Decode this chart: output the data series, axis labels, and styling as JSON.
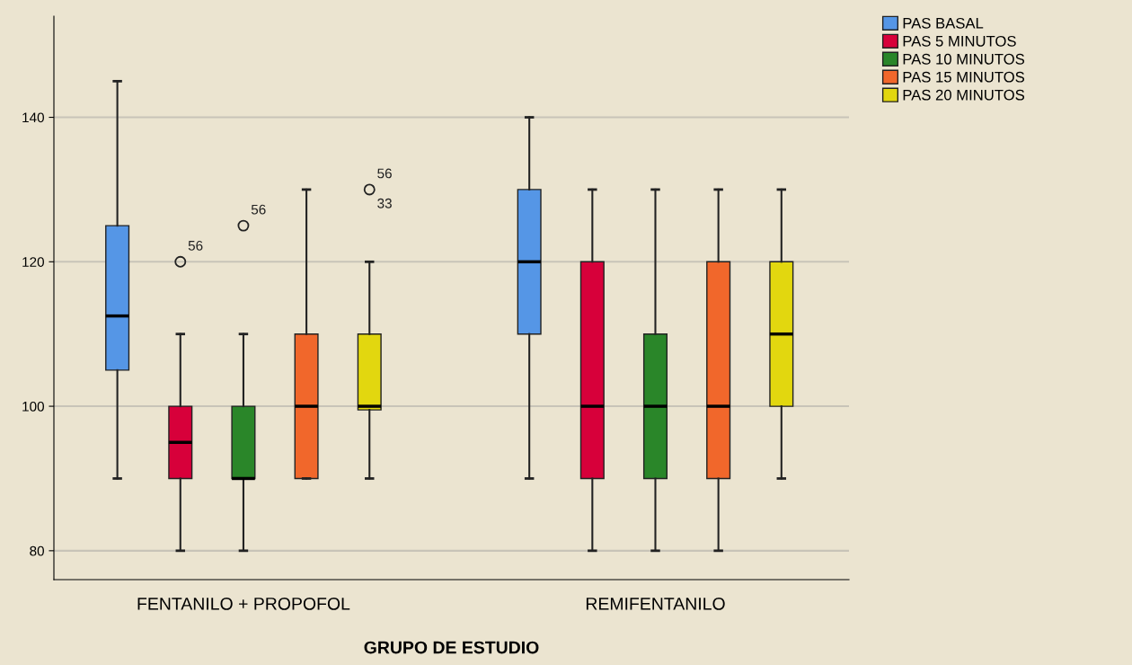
{
  "chart_data": {
    "type": "box",
    "xlabel": "GRUPO DE ESTUDIO",
    "categories": [
      "FENTANILO + PROPOFOL",
      "REMIFENTANILO"
    ],
    "ylim": [
      76,
      154
    ],
    "yticks": [
      80,
      100,
      120,
      140
    ],
    "grid": "y",
    "legend": "top right",
    "series": [
      {
        "name": "PAS BASAL",
        "color": "#5596e6",
        "boxes": [
          {
            "low": 90,
            "q1": 105,
            "median": 112.5,
            "q3": 125,
            "high": 145
          },
          {
            "low": 90,
            "q1": 110,
            "median": 120,
            "q3": 130,
            "high": 140
          }
        ]
      },
      {
        "name": "PAS 5 MINUTOS",
        "color": "#d7003a",
        "boxes": [
          {
            "low": 80,
            "q1": 90,
            "median": 95,
            "q3": 100,
            "high": 110,
            "outliers": [
              120
            ]
          },
          {
            "low": 80,
            "q1": 90,
            "median": 100,
            "q3": 120,
            "high": 130
          }
        ]
      },
      {
        "name": "PAS 10 MINUTOS",
        "color": "#2a8629",
        "boxes": [
          {
            "low": 80,
            "q1": 90,
            "median": 90,
            "q3": 100,
            "high": 110,
            "outliers": [
              125
            ]
          },
          {
            "low": 80,
            "q1": 90,
            "median": 100,
            "q3": 110,
            "high": 130
          }
        ]
      },
      {
        "name": "PAS 15 MINUTOS",
        "color": "#f1672b",
        "boxes": [
          {
            "low": 90,
            "q1": 90,
            "median": 100,
            "q3": 110,
            "high": 130
          },
          {
            "low": 80,
            "q1": 90,
            "median": 100,
            "q3": 120,
            "high": 130
          }
        ]
      },
      {
        "name": "PAS 20 MINUTOS",
        "color": "#e2d70f",
        "boxes": [
          {
            "low": 90,
            "q1": 99.5,
            "median": 100,
            "q3": 110,
            "high": 120,
            "outliers": [
              130
            ]
          },
          {
            "low": 90,
            "q1": 100,
            "median": 110,
            "q3": 120,
            "high": 130
          }
        ]
      }
    ],
    "annotations": [
      "56",
      "56",
      "56",
      "33"
    ]
  }
}
